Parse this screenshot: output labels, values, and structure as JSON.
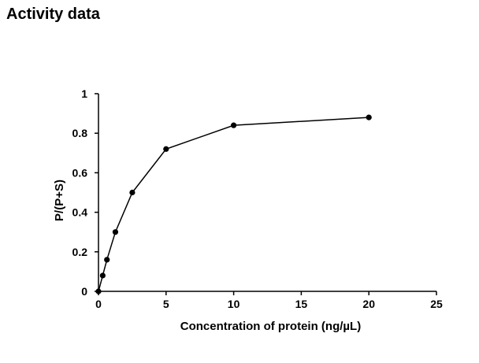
{
  "page": {
    "heading": "Activity data"
  },
  "chart_data": {
    "type": "line",
    "title": "",
    "xlabel": "Concentration of protein (ng/µL)",
    "ylabel": "P/(P+S)",
    "xlim": [
      0,
      25
    ],
    "ylim": [
      0,
      1
    ],
    "xticks": [
      0,
      5,
      10,
      15,
      20,
      25
    ],
    "yticks": [
      0,
      0.2,
      0.4,
      0.6,
      0.8,
      1
    ],
    "xtick_labels": [
      "0",
      "5",
      "10",
      "15",
      "20",
      "25"
    ],
    "ytick_labels": [
      "0",
      "0.2",
      "0.4",
      "0.6",
      "0.8",
      "1"
    ],
    "grid": false,
    "legend": "none",
    "marker": "filled-circle",
    "line_color": "#000000",
    "series": [
      {
        "x": [
          0,
          0.3125,
          0.625,
          1.25,
          2.5,
          5,
          10,
          20
        ],
        "y": [
          0,
          0.08,
          0.16,
          0.3,
          0.5,
          0.72,
          0.84,
          0.88
        ]
      }
    ]
  }
}
